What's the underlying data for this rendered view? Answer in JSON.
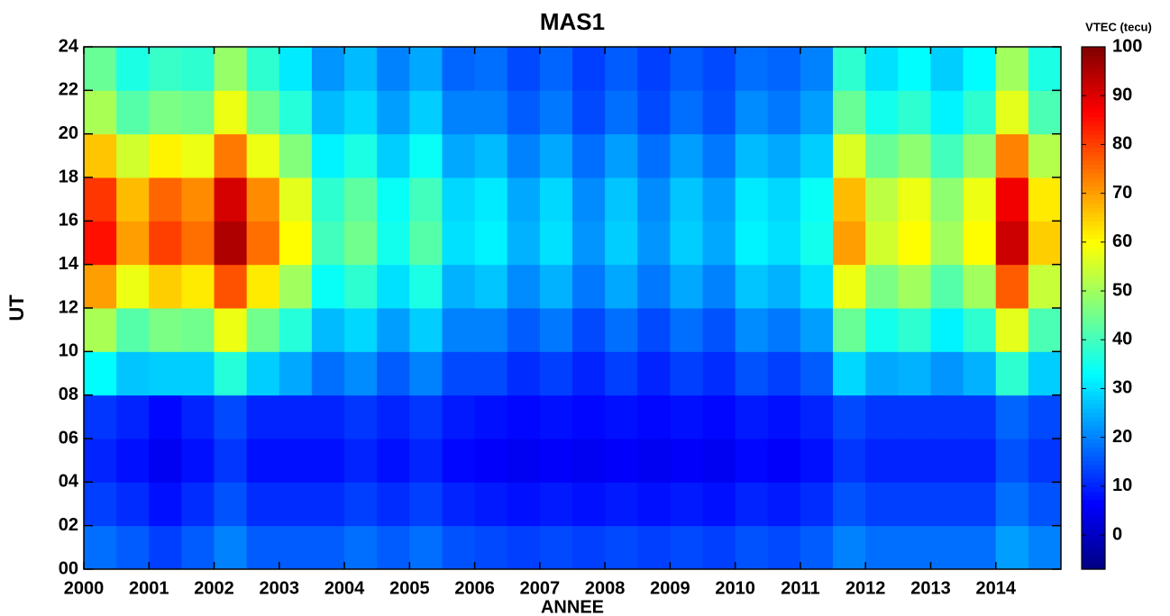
{
  "chart_data": {
    "type": "heatmap",
    "title": "MAS1",
    "xlabel": "ANNEE",
    "ylabel": "UT",
    "colorbar_label": "VTEC (tecu)",
    "colormap": "jet",
    "x_edges": [
      2000,
      2000.5,
      2001,
      2001.5,
      2002,
      2002.5,
      2003,
      2003.5,
      2004,
      2004.5,
      2005,
      2005.5,
      2006,
      2006.5,
      2007,
      2007.5,
      2008,
      2008.5,
      2009,
      2009.5,
      2010,
      2010.5,
      2011,
      2011.5,
      2012,
      2012.5,
      2013,
      2013.5,
      2014,
      2014.5,
      2015
    ],
    "y_edges": [
      0,
      2,
      4,
      6,
      8,
      10,
      12,
      14,
      16,
      18,
      20,
      22,
      24
    ],
    "z": [
      [
        18,
        13,
        10,
        12,
        33,
        51,
        70,
        85,
        81,
        66,
        51,
        44
      ],
      [
        16,
        11,
        8,
        10,
        27,
        42,
        58,
        70,
        67,
        55,
        42,
        36
      ],
      [
        13,
        8,
        5,
        7,
        28,
        46,
        65,
        80,
        76,
        61,
        46,
        39
      ],
      [
        16,
        11,
        8,
        10,
        28,
        45,
        62,
        75,
        72,
        58,
        45,
        38
      ],
      [
        20,
        15,
        12,
        14,
        37,
        58,
        78,
        95,
        91,
        74,
        58,
        49
      ],
      [
        16,
        11,
        8,
        10,
        28,
        45,
        62,
        75,
        72,
        58,
        45,
        38
      ],
      [
        16,
        11,
        8,
        10,
        24,
        37,
        50,
        60,
        57,
        47,
        37,
        31
      ],
      [
        16,
        11,
        8,
        10,
        18,
        26,
        34,
        40,
        38,
        32,
        26,
        22
      ],
      [
        18,
        13,
        10,
        12,
        21,
        29,
        38,
        45,
        43,
        36,
        29,
        26
      ],
      [
        16,
        11,
        8,
        10,
        16,
        23,
        30,
        35,
        34,
        28,
        23,
        20
      ],
      [
        18,
        13,
        10,
        12,
        20,
        28,
        36,
        42,
        40,
        34,
        28,
        24
      ],
      [
        15,
        10,
        7,
        9,
        14,
        20,
        25,
        30,
        29,
        24,
        20,
        17
      ],
      [
        14,
        9,
        6,
        8,
        14,
        20,
        27,
        32,
        31,
        26,
        20,
        18
      ],
      [
        13,
        8,
        5,
        7,
        11,
        16,
        21,
        25,
        24,
        20,
        16,
        14
      ],
      [
        14,
        9,
        6,
        8,
        13,
        19,
        25,
        30,
        29,
        24,
        19,
        17
      ],
      [
        13,
        8,
        5,
        7,
        10,
        14,
        19,
        22,
        21,
        18,
        14,
        13
      ],
      [
        14,
        9,
        6,
        8,
        13,
        18,
        24,
        28,
        27,
        23,
        18,
        16
      ],
      [
        13,
        8,
        5,
        7,
        10,
        14,
        19,
        22,
        21,
        18,
        14,
        13
      ],
      [
        14,
        9,
        6,
        8,
        13,
        18,
        24,
        28,
        27,
        23,
        18,
        16
      ],
      [
        13,
        8,
        5,
        7,
        11,
        15,
        20,
        24,
        23,
        19,
        15,
        14
      ],
      [
        15,
        10,
        7,
        9,
        15,
        21,
        27,
        32,
        31,
        26,
        21,
        18
      ],
      [
        14,
        9,
        6,
        8,
        13,
        19,
        25,
        30,
        29,
        24,
        19,
        17
      ],
      [
        16,
        11,
        8,
        10,
        16,
        23,
        30,
        35,
        34,
        28,
        23,
        20
      ],
      [
        20,
        15,
        12,
        14,
        29,
        44,
        58,
        70,
        67,
        56,
        44,
        38
      ],
      [
        18,
        13,
        10,
        12,
        24,
        35,
        46,
        55,
        53,
        44,
        35,
        30
      ],
      [
        18,
        13,
        10,
        12,
        25,
        38,
        50,
        60,
        58,
        48,
        38,
        33
      ],
      [
        18,
        13,
        10,
        12,
        22,
        32,
        42,
        50,
        48,
        40,
        32,
        28
      ],
      [
        18,
        13,
        10,
        12,
        25,
        38,
        50,
        60,
        58,
        48,
        38,
        33
      ],
      [
        23,
        18,
        15,
        17,
        38,
        57,
        77,
        92,
        88,
        73,
        57,
        50
      ],
      [
        20,
        15,
        12,
        14,
        28,
        41,
        54,
        65,
        62,
        52,
        41,
        36
      ]
    ],
    "xlim": [
      2000,
      2015
    ],
    "ylim": [
      0,
      24
    ],
    "xticks": [
      2000,
      2001,
      2002,
      2003,
      2004,
      2005,
      2006,
      2007,
      2008,
      2009,
      2010,
      2011,
      2012,
      2013,
      2014
    ],
    "yticks": [
      {
        "value": 0,
        "label": "00"
      },
      {
        "value": 2,
        "label": "02"
      },
      {
        "value": 4,
        "label": "04"
      },
      {
        "value": 6,
        "label": "06"
      },
      {
        "value": 8,
        "label": "08"
      },
      10,
      12,
      14,
      16,
      18,
      20,
      22,
      24
    ],
    "clim": [
      -7,
      100
    ],
    "cticks": [
      0,
      10,
      20,
      30,
      40,
      50,
      60,
      70,
      80,
      90,
      100
    ]
  }
}
